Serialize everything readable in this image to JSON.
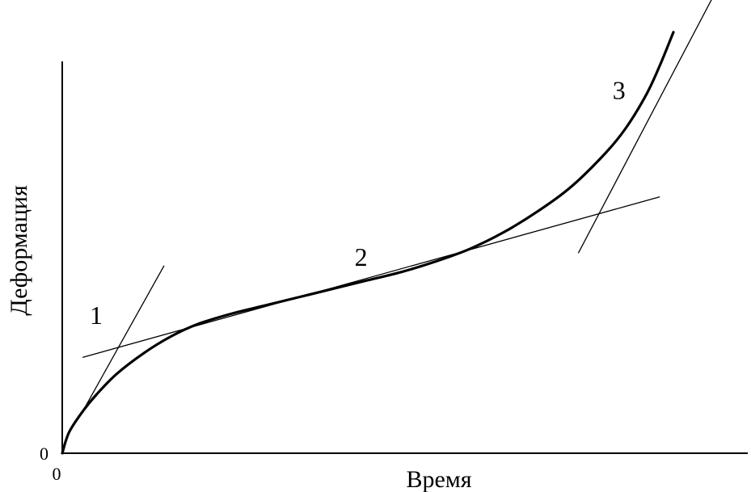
{
  "chart_data": {
    "type": "line",
    "title": "",
    "xlabel": "Время",
    "ylabel": "Деформация",
    "x_origin_label": "0",
    "y_origin_label": "0",
    "xlim": [
      0,
      100
    ],
    "ylim": [
      0,
      100
    ],
    "grid": false,
    "legend": "none",
    "series": [
      {
        "x": [
          0,
          1,
          3,
          5,
          8,
          12,
          16,
          20,
          25,
          30,
          35,
          40,
          45,
          50,
          55,
          60,
          65,
          70,
          75,
          80,
          83,
          86,
          88,
          90
        ],
        "y": [
          0,
          5,
          10,
          14,
          19,
          24,
          28,
          31,
          33.5,
          35.5,
          37.5,
          39.5,
          41.5,
          43.5,
          46,
          49,
          53,
          58,
          64,
          72,
          78,
          86,
          93,
          101
        ]
      }
    ],
    "tangents": [
      {
        "label": "1",
        "x": [
          3,
          15
        ],
        "y": [
          10,
          45
        ]
      },
      {
        "label": "2",
        "x": [
          3,
          88
        ],
        "y": [
          23,
          61.5
        ]
      },
      {
        "label": "3",
        "x": [
          76,
          96
        ],
        "y": [
          48,
          110
        ]
      }
    ],
    "region_labels": [
      {
        "text": "1",
        "x": 5,
        "y": 31
      },
      {
        "text": "2",
        "x": 44,
        "y": 45
      },
      {
        "text": "3",
        "x": 82,
        "y": 85
      }
    ],
    "colors": {
      "curve": "#000000",
      "axis": "#000000",
      "tangent": "#000000"
    }
  }
}
